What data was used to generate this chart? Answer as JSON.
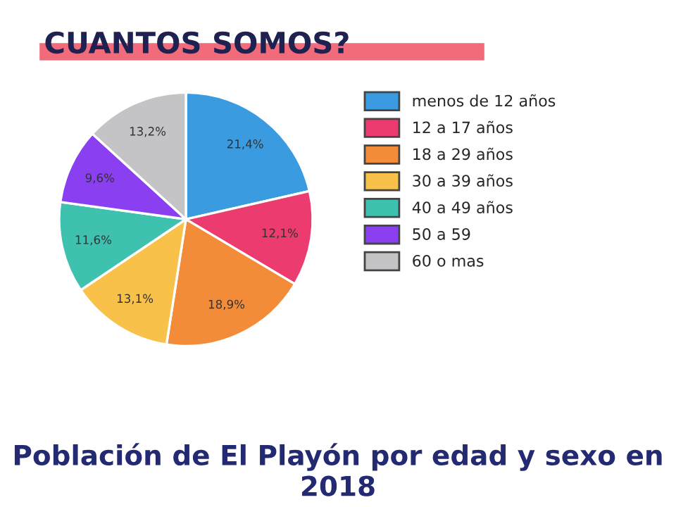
{
  "chart_data": {
    "type": "pie",
    "title": "CUANTOS SOMOS?",
    "subtitle": "Población de El Playón por edad y sexo en 2018",
    "categories": [
      "menos de 12 años",
      "12 a 17 años",
      "18 a 29 años",
      "30 a 39 años",
      "40 a 49 años",
      "50 a 59",
      "60 o mas"
    ],
    "values": [
      21.4,
      12.1,
      18.9,
      13.1,
      11.6,
      9.6,
      13.2
    ],
    "value_labels": [
      "21,4%",
      "12,1%",
      "18,9%",
      "13,1%",
      "11,6%",
      "9,6%",
      "13,2%"
    ],
    "colors": [
      "#3a9be0",
      "#ec3b6e",
      "#f28c38",
      "#f8c24a",
      "#3fc1b0",
      "#8a3ff0",
      "#c4c4c6"
    ],
    "legend": "right"
  }
}
